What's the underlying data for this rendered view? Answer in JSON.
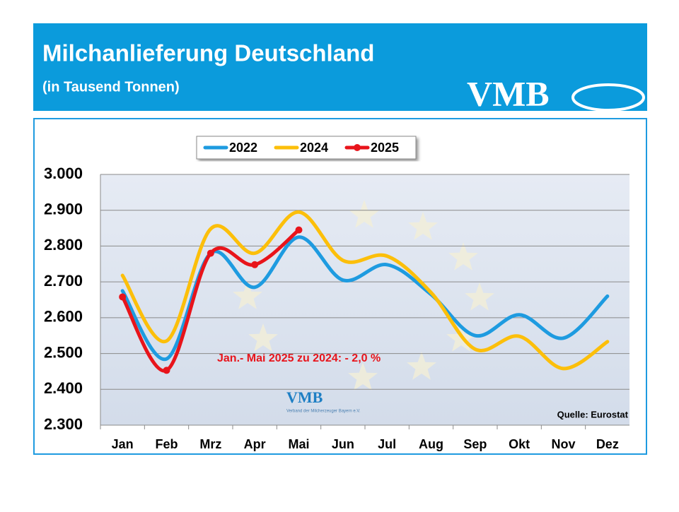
{
  "chart_data": {
    "type": "line",
    "title": "Milchanlieferung Deutschland",
    "subtitle": "(in Tausend Tonnen)",
    "logo": "VMB",
    "watermark": "VMB",
    "watermark_subtitle": "Verband der Milcherzeuger Bayern e.V.",
    "annotation": "Jan.- Mai 2025 zu 2024: - 2,0 %",
    "source": "Quelle: Eurostat",
    "categories": [
      "Jan",
      "Feb",
      "Mrz",
      "Apr",
      "Mai",
      "Jun",
      "Jul",
      "Aug",
      "Sep",
      "Okt",
      "Nov",
      "Dez"
    ],
    "series": [
      {
        "name": "2022",
        "color": "#1e9be0",
        "values": [
          2675,
          2485,
          2780,
          2685,
          2825,
          2705,
          2748,
          2665,
          2550,
          2608,
          2543,
          2660
        ]
      },
      {
        "name": "2024",
        "color": "#fcbf0a",
        "values": [
          2718,
          2535,
          2848,
          2780,
          2895,
          2760,
          2772,
          2670,
          2512,
          2548,
          2458,
          2533
        ]
      },
      {
        "name": "2025",
        "color": "#e8141b",
        "markers": true,
        "values": [
          2658,
          2453,
          2780,
          2748,
          2845,
          null,
          null,
          null,
          null,
          null,
          null,
          null
        ]
      }
    ],
    "ylim": [
      2300,
      3000
    ],
    "yticks": [
      {
        "value": 2300,
        "label": "2.300"
      },
      {
        "value": 2400,
        "label": "2.400"
      },
      {
        "value": 2500,
        "label": "2.500"
      },
      {
        "value": 2600,
        "label": "2.600"
      },
      {
        "value": 2700,
        "label": "2.700"
      },
      {
        "value": 2800,
        "label": "2.800"
      },
      {
        "value": 2900,
        "label": "2.900"
      },
      {
        "value": 3000,
        "label": "3.000"
      }
    ],
    "grid": true
  }
}
